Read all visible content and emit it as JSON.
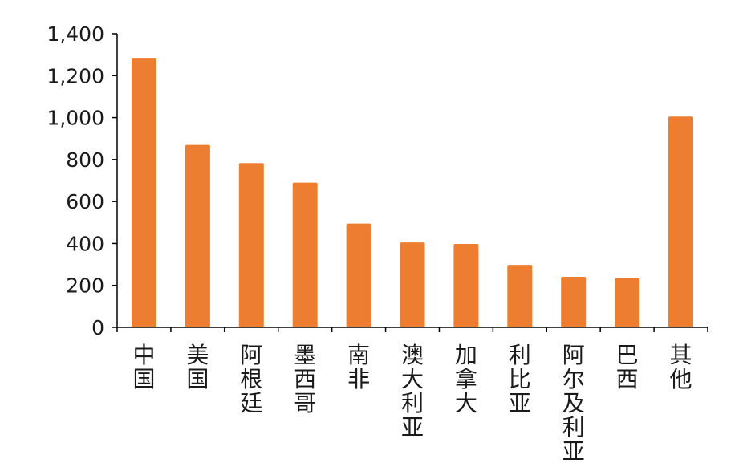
{
  "chart_data": {
    "type": "bar",
    "title": "",
    "xlabel": "",
    "ylabel": "",
    "categories": [
      "中国",
      "美国",
      "阿根廷",
      "墨西哥",
      "南非",
      "澳大利亚",
      "加拿大",
      "利比亚",
      "阿尔及利亚",
      "巴西",
      "其他"
    ],
    "values": [
      1285,
      870,
      783,
      690,
      495,
      405,
      398,
      298,
      241,
      235,
      1005
    ],
    "ylim": [
      0,
      1400
    ],
    "yticks": [
      0,
      200,
      400,
      600,
      800,
      1000,
      1200,
      1400
    ],
    "ytick_labels": [
      "0",
      "200",
      "400",
      "600",
      "800",
      "1,000",
      "1,200",
      "1,400"
    ],
    "bar_color": "#ED7D31",
    "axis_color": "#000000",
    "grid": false,
    "legend": "none"
  }
}
